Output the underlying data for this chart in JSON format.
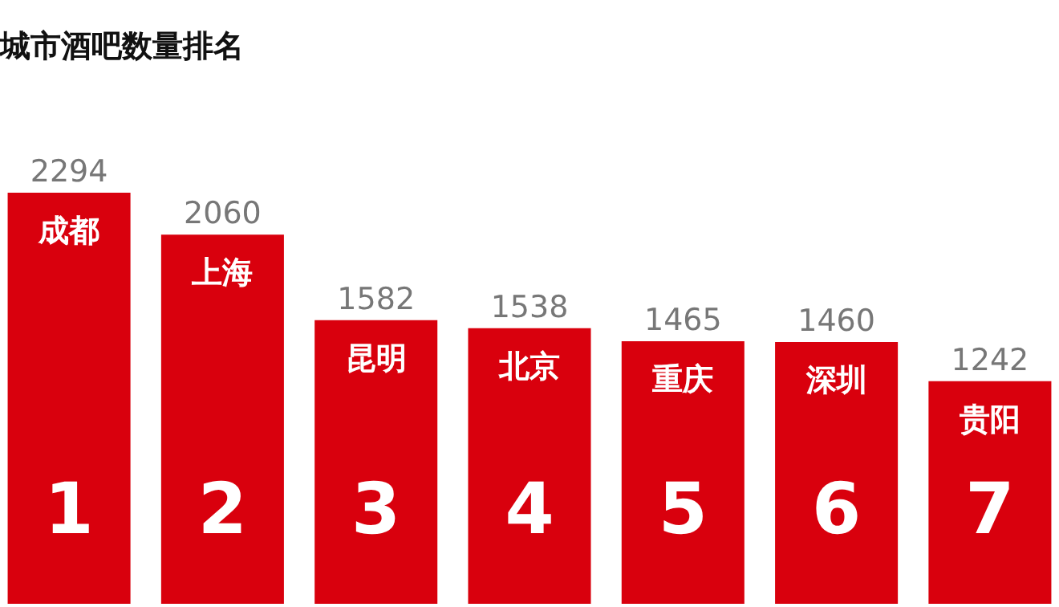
{
  "chart_data": {
    "type": "bar",
    "title": "城市酒吧数量排名",
    "categories": [
      "成都",
      "上海",
      "昆明",
      "北京",
      "重庆",
      "深圳",
      "贵阳"
    ],
    "values": [
      2294,
      2060,
      1582,
      1538,
      1465,
      1460,
      1242
    ],
    "color": "#d9000d",
    "data_labels": true,
    "tick_labels": false,
    "annotations": [
      "1",
      "2",
      "3",
      "4",
      "5",
      "6",
      "7"
    ]
  }
}
